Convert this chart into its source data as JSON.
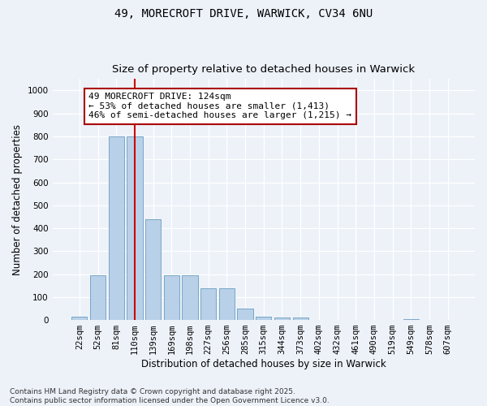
{
  "title_line1": "49, MORECROFT DRIVE, WARWICK, CV34 6NU",
  "title_line2": "Size of property relative to detached houses in Warwick",
  "xlabel": "Distribution of detached houses by size in Warwick",
  "ylabel": "Number of detached properties",
  "categories": [
    "22sqm",
    "52sqm",
    "81sqm",
    "110sqm",
    "139sqm",
    "169sqm",
    "198sqm",
    "227sqm",
    "256sqm",
    "285sqm",
    "315sqm",
    "344sqm",
    "373sqm",
    "402sqm",
    "432sqm",
    "461sqm",
    "490sqm",
    "519sqm",
    "549sqm",
    "578sqm",
    "607sqm"
  ],
  "values": [
    15,
    195,
    800,
    800,
    440,
    195,
    195,
    140,
    140,
    50,
    15,
    10,
    10,
    0,
    0,
    0,
    0,
    0,
    5,
    0,
    0
  ],
  "bar_color": "#b8d0e8",
  "bar_edge_color": "#6a9ec0",
  "vline_x": 3,
  "vline_color": "#cc0000",
  "annotation_text": "49 MORECROFT DRIVE: 124sqm\n← 53% of detached houses are smaller (1,413)\n46% of semi-detached houses are larger (1,215) →",
  "annotation_box_edgecolor": "#aa0000",
  "annotation_fill": "white",
  "ylim": [
    0,
    1050
  ],
  "yticks": [
    0,
    100,
    200,
    300,
    400,
    500,
    600,
    700,
    800,
    900,
    1000
  ],
  "footer_line1": "Contains HM Land Registry data © Crown copyright and database right 2025.",
  "footer_line2": "Contains public sector information licensed under the Open Government Licence v3.0.",
  "background_color": "#edf2f9",
  "grid_color": "#ffffff",
  "title_fontsize": 10,
  "subtitle_fontsize": 9.5,
  "axis_label_fontsize": 8.5,
  "tick_fontsize": 7.5,
  "footer_fontsize": 6.5,
  "annotation_fontsize": 8
}
